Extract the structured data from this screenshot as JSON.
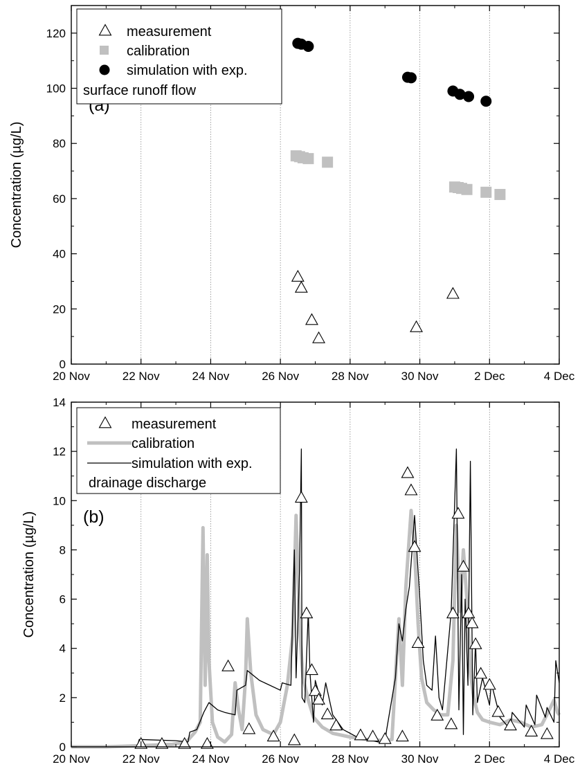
{
  "chart_data": [
    {
      "type": "scatter",
      "panel_label": "(a)",
      "ylabel": "Concentration (µg/L)",
      "x_unit": "days from 20 Nov",
      "xlim": [
        0,
        14
      ],
      "ylim": [
        0,
        130
      ],
      "y_ticks": [
        0,
        20,
        40,
        60,
        80,
        100,
        120
      ],
      "x_tick_labels": [
        {
          "x": 0,
          "label": "20 Nov"
        },
        {
          "x": 2,
          "label": "22 Nov"
        },
        {
          "x": 4,
          "label": "24 Nov"
        },
        {
          "x": 6,
          "label": "26 Nov"
        },
        {
          "x": 8,
          "label": "28 Nov"
        },
        {
          "x": 10,
          "label": "30 Nov"
        },
        {
          "x": 12,
          "label": "2 Dec"
        },
        {
          "x": 14,
          "label": "4 Dec"
        }
      ],
      "grid": "vertical dotted lines at x tick positions",
      "legend": {
        "placement": "top-left",
        "entries": [
          "measurement",
          "calibration",
          "simulation with exp."
        ],
        "note": "surface runoff flow"
      },
      "series": [
        {
          "name": "measurement",
          "marker": "triangle",
          "points": [
            [
              6.5,
              31.5
            ],
            [
              6.6,
              27.5
            ],
            [
              6.9,
              15.8
            ],
            [
              7.1,
              9.2
            ],
            [
              9.9,
              13.2
            ],
            [
              10.95,
              25.3
            ]
          ]
        },
        {
          "name": "calibration",
          "marker": "square",
          "color": "#c0c0c0",
          "points": [
            [
              6.45,
              75.5
            ],
            [
              6.55,
              75.2
            ],
            [
              6.65,
              74.8
            ],
            [
              6.8,
              74.5
            ],
            [
              7.35,
              73.2
            ],
            [
              11.0,
              64.2
            ],
            [
              11.1,
              64.0
            ],
            [
              11.2,
              63.7
            ],
            [
              11.35,
              63.3
            ],
            [
              11.9,
              62.3
            ],
            [
              12.3,
              61.5
            ]
          ]
        },
        {
          "name": "simulation with exp.",
          "marker": "circle",
          "color": "#000000",
          "points": [
            [
              6.5,
              116.3
            ],
            [
              6.6,
              116.0
            ],
            [
              6.8,
              115.2
            ],
            [
              9.65,
              104.0
            ],
            [
              9.75,
              103.8
            ],
            [
              10.95,
              99.0
            ],
            [
              11.15,
              97.8
            ],
            [
              11.4,
              97.0
            ],
            [
              11.9,
              95.3
            ]
          ]
        }
      ]
    },
    {
      "type": "line",
      "panel_label": "(b)",
      "ylabel": "Concentration (µg/L)",
      "x_unit": "days from 20 Nov",
      "xlim": [
        0,
        14
      ],
      "ylim": [
        0,
        14
      ],
      "y_ticks": [
        0,
        2,
        4,
        6,
        8,
        10,
        12,
        14
      ],
      "x_tick_labels": [
        {
          "x": 0,
          "label": "20 Nov"
        },
        {
          "x": 2,
          "label": "22 Nov"
        },
        {
          "x": 4,
          "label": "24 Nov"
        },
        {
          "x": 6,
          "label": "26 Nov"
        },
        {
          "x": 8,
          "label": "28 Nov"
        },
        {
          "x": 10,
          "label": "30 Nov"
        },
        {
          "x": 12,
          "label": "2 Dec"
        },
        {
          "x": 14,
          "label": "4 Dec"
        }
      ],
      "grid": "vertical dotted lines at x tick positions",
      "legend": {
        "placement": "top-left",
        "entries": [
          "measurement",
          "calibration",
          "simulation with exp."
        ],
        "note": "drainage discharge"
      },
      "series": [
        {
          "name": "measurement",
          "marker": "triangle",
          "points": [
            [
              2.0,
              0.1
            ],
            [
              2.6,
              0.1
            ],
            [
              3.25,
              0.1
            ],
            [
              3.9,
              0.1
            ],
            [
              4.5,
              3.25
            ],
            [
              5.1,
              0.7
            ],
            [
              5.8,
              0.4
            ],
            [
              6.4,
              0.25
            ],
            [
              6.6,
              10.1
            ],
            [
              6.75,
              5.4
            ],
            [
              6.9,
              3.1
            ],
            [
              7.0,
              2.25
            ],
            [
              7.1,
              1.9
            ],
            [
              7.35,
              1.3
            ],
            [
              7.6,
              0.85
            ],
            [
              8.3,
              0.45
            ],
            [
              8.65,
              0.4
            ],
            [
              9.0,
              0.3
            ],
            [
              9.5,
              0.4
            ],
            [
              9.65,
              11.1
            ],
            [
              9.75,
              10.4
            ],
            [
              9.85,
              8.1
            ],
            [
              9.95,
              4.2
            ],
            [
              10.5,
              1.25
            ],
            [
              10.9,
              0.9
            ],
            [
              10.95,
              5.4
            ],
            [
              11.1,
              9.45
            ],
            [
              11.25,
              7.3
            ],
            [
              11.4,
              5.4
            ],
            [
              11.5,
              5.0
            ],
            [
              11.6,
              4.15
            ],
            [
              11.75,
              2.95
            ],
            [
              12.0,
              2.5
            ],
            [
              12.25,
              1.4
            ],
            [
              12.6,
              0.85
            ],
            [
              13.2,
              0.6
            ],
            [
              13.65,
              0.5
            ]
          ]
        },
        {
          "name": "calibration",
          "color": "#c0c0c0",
          "stroke_width": 5,
          "points": [
            [
              0,
              0
            ],
            [
              1,
              0
            ],
            [
              2,
              0.05
            ],
            [
              2.9,
              0.1
            ],
            [
              3.3,
              0.2
            ],
            [
              3.55,
              0.6
            ],
            [
              3.7,
              1.0
            ],
            [
              3.78,
              8.9
            ],
            [
              3.84,
              2.5
            ],
            [
              3.9,
              7.8
            ],
            [
              3.95,
              3.5
            ],
            [
              4.05,
              1.0
            ],
            [
              4.2,
              0.4
            ],
            [
              4.4,
              0.2
            ],
            [
              4.6,
              0.5
            ],
            [
              4.7,
              2.6
            ],
            [
              4.8,
              1.5
            ],
            [
              4.9,
              0.7
            ],
            [
              5.0,
              2.8
            ],
            [
              5.05,
              5.2
            ],
            [
              5.15,
              3.0
            ],
            [
              5.3,
              1.3
            ],
            [
              5.5,
              0.7
            ],
            [
              5.8,
              0.5
            ],
            [
              6.0,
              1.0
            ],
            [
              6.2,
              2.5
            ],
            [
              6.35,
              4.5
            ],
            [
              6.45,
              9.4
            ],
            [
              6.55,
              4.8
            ],
            [
              6.65,
              2.8
            ],
            [
              6.8,
              1.9
            ],
            [
              6.95,
              1.2
            ],
            [
              7.2,
              0.8
            ],
            [
              7.5,
              0.55
            ],
            [
              8.0,
              0.4
            ],
            [
              8.5,
              0.3
            ],
            [
              9.0,
              0.25
            ],
            [
              9.2,
              0.3
            ],
            [
              9.3,
              2.8
            ],
            [
              9.4,
              5.2
            ],
            [
              9.5,
              2.5
            ],
            [
              9.6,
              6.5
            ],
            [
              9.75,
              9.6
            ],
            [
              9.85,
              8.0
            ],
            [
              9.95,
              5.0
            ],
            [
              10.05,
              2.8
            ],
            [
              10.2,
              1.8
            ],
            [
              10.4,
              1.5
            ],
            [
              10.6,
              1.3
            ],
            [
              10.8,
              1.3
            ],
            [
              10.95,
              3.5
            ],
            [
              11.05,
              9.0
            ],
            [
              11.15,
              5.5
            ],
            [
              11.25,
              8.0
            ],
            [
              11.35,
              6.0
            ],
            [
              11.45,
              3.0
            ],
            [
              11.55,
              2.0
            ],
            [
              11.65,
              1.4
            ],
            [
              11.8,
              1.1
            ],
            [
              12.0,
              1.0
            ],
            [
              12.3,
              0.9
            ],
            [
              12.6,
              1.1
            ],
            [
              12.9,
              1.0
            ],
            [
              13.2,
              0.8
            ],
            [
              13.5,
              0.9
            ],
            [
              13.75,
              1.6
            ],
            [
              13.85,
              1.9
            ],
            [
              13.95,
              1.4
            ],
            [
              14.0,
              1.3
            ]
          ]
        },
        {
          "name": "simulation with exp.",
          "color": "#000000",
          "stroke_width": 1.3,
          "points": [
            [
              1.9,
              0.05
            ],
            [
              1.95,
              0.3
            ],
            [
              3.0,
              0.25
            ],
            [
              3.35,
              0.2
            ],
            [
              3.4,
              0.6
            ],
            [
              3.6,
              0.7
            ],
            [
              3.8,
              1.4
            ],
            [
              3.95,
              1.8
            ],
            [
              4.2,
              1.5
            ],
            [
              4.4,
              1.4
            ],
            [
              4.7,
              1.3
            ],
            [
              4.75,
              2.3
            ],
            [
              5.0,
              2.5
            ],
            [
              5.05,
              3.1
            ],
            [
              5.4,
              2.7
            ],
            [
              6.0,
              2.3
            ],
            [
              6.05,
              2.6
            ],
            [
              6.3,
              2.5
            ],
            [
              6.4,
              8.0
            ],
            [
              6.45,
              2.8
            ],
            [
              6.55,
              7.2
            ],
            [
              6.6,
              12.1
            ],
            [
              6.62,
              2.0
            ],
            [
              6.7,
              1.8
            ],
            [
              6.8,
              5.5
            ],
            [
              6.85,
              3.0
            ],
            [
              6.95,
              1.0
            ],
            [
              7.0,
              2.7
            ],
            [
              7.2,
              1.7
            ],
            [
              7.3,
              2.6
            ],
            [
              7.5,
              1.3
            ],
            [
              7.8,
              0.7
            ],
            [
              8.2,
              0.4
            ],
            [
              8.8,
              0.2
            ],
            [
              9.0,
              0.15
            ],
            [
              9.05,
              0.7
            ],
            [
              9.3,
              2.8
            ],
            [
              9.4,
              5.0
            ],
            [
              9.5,
              4.3
            ],
            [
              9.6,
              5.6
            ],
            [
              9.7,
              6.5
            ],
            [
              9.85,
              9.4
            ],
            [
              10.0,
              6.0
            ],
            [
              10.1,
              3.5
            ],
            [
              10.2,
              2.5
            ],
            [
              10.35,
              2.3
            ],
            [
              10.45,
              4.5
            ],
            [
              10.55,
              2.0
            ],
            [
              10.65,
              1.5
            ],
            [
              10.9,
              5.5
            ],
            [
              11.05,
              12.1
            ],
            [
              11.12,
              1.5
            ],
            [
              11.2,
              7.0
            ],
            [
              11.25,
              0.5
            ],
            [
              11.3,
              6.0
            ],
            [
              11.38,
              2.5
            ],
            [
              11.45,
              11.6
            ],
            [
              11.52,
              1.3
            ],
            [
              11.6,
              4.3
            ],
            [
              11.65,
              1.8
            ],
            [
              11.8,
              2.8
            ],
            [
              12.0,
              1.7
            ],
            [
              12.05,
              2.6
            ],
            [
              12.3,
              1.2
            ],
            [
              12.6,
              0.7
            ],
            [
              12.65,
              1.4
            ],
            [
              13.0,
              0.8
            ],
            [
              13.05,
              1.7
            ],
            [
              13.3,
              0.9
            ],
            [
              13.35,
              2.1
            ],
            [
              13.6,
              1.2
            ],
            [
              13.65,
              1.6
            ],
            [
              13.85,
              1.0
            ],
            [
              13.9,
              3.5
            ],
            [
              14.0,
              2.6
            ]
          ]
        }
      ]
    }
  ]
}
